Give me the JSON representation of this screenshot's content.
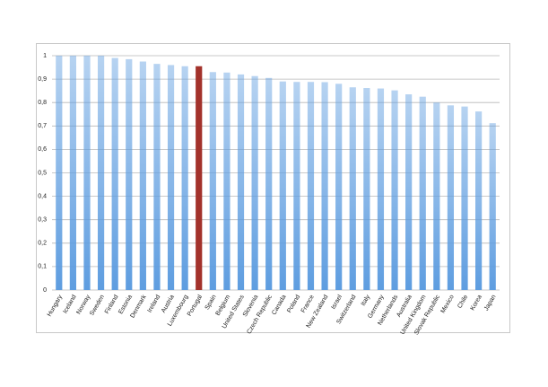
{
  "chart_data": {
    "type": "bar",
    "categories": [
      "Hungary",
      "Iceland",
      "Norway",
      "Sweden",
      "Finland",
      "Estonia",
      "Denmark",
      "Ireland",
      "Austria",
      "Luxembourg",
      "Portugal",
      "Spain",
      "Belgium",
      "United States",
      "Slovenia",
      "Czech Republic",
      "Canada",
      "Poland",
      "France",
      "New Zealand",
      "Israel",
      "Switzerland",
      "Italy",
      "Germany",
      "Netherlands",
      "Australia",
      "United Kingdom",
      "Slovak Republic",
      "Mexico",
      "Chile",
      "Korea",
      "Japan"
    ],
    "values": [
      1,
      1,
      1,
      1,
      0.99,
      0.985,
      0.975,
      0.965,
      0.96,
      0.955,
      0.955,
      0.93,
      0.928,
      0.92,
      0.913,
      0.905,
      0.89,
      0.888,
      0.888,
      0.887,
      0.88,
      0.865,
      0.862,
      0.86,
      0.852,
      0.835,
      0.825,
      0.8,
      0.788,
      0.783,
      0.762,
      0.712
    ],
    "colors": [
      "#5e9de0",
      "#5e9de0",
      "#5e9de0",
      "#5e9de0",
      "#5e9de0",
      "#5e9de0",
      "#5e9de0",
      "#5e9de0",
      "#5e9de0",
      "#5e9de0",
      "#a3322b",
      "#5e9de0",
      "#5e9de0",
      "#5e9de0",
      "#5e9de0",
      "#5e9de0",
      "#5e9de0",
      "#5e9de0",
      "#5e9de0",
      "#5e9de0",
      "#5e9de0",
      "#5e9de0",
      "#5e9de0",
      "#5e9de0",
      "#5e9de0",
      "#5e9de0",
      "#5e9de0",
      "#5e9de0",
      "#5e9de0",
      "#5e9de0",
      "#5e9de0",
      "#5e9de0"
    ],
    "ylim": [
      0,
      1
    ],
    "yticks": [
      0,
      {
        "value": 0.1,
        "label": "0,1"
      },
      {
        "value": 0.2,
        "label": "0,2"
      },
      {
        "value": 0.3,
        "label": "0,3"
      },
      {
        "value": 0.4,
        "label": "0,4"
      },
      {
        "value": 0.5,
        "label": "0,5"
      },
      {
        "value": 0.6,
        "label": "0,6"
      },
      {
        "value": 0.7,
        "label": "0,7"
      },
      {
        "value": 0.8,
        "label": "0,8"
      },
      {
        "value": 0.9,
        "label": "0,9"
      },
      1
    ],
    "grid": true
  }
}
